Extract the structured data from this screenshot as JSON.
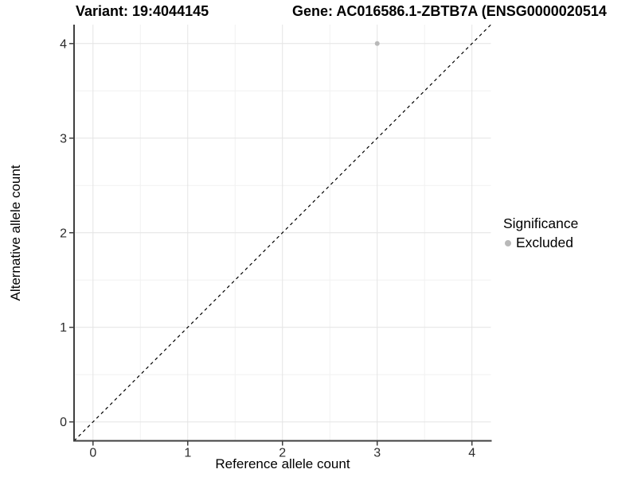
{
  "header": {
    "variant_title": "Variant: 19:4044145",
    "gene_title": "Gene: AC016586.1-ZBTB7A (ENSG0000020514"
  },
  "axes": {
    "xlabel": "Reference allele count",
    "ylabel": "Alternative allele count"
  },
  "legend": {
    "title": "Significance",
    "items": [
      {
        "label": "Excluded",
        "color": "#b9b9b9",
        "marker": "circle"
      }
    ]
  },
  "colors": {
    "background": "#ffffff",
    "grid_major": "#e4e4e4",
    "grid_minor": "#f1f1f1",
    "axis_line": "#3f3f3f",
    "tick_mark": "#3f3f3f",
    "tick_label": "#2b2b2b",
    "identity_line": "#000000",
    "point": "#b9b9b9"
  },
  "chart_data": {
    "type": "scatter",
    "title": "Variant: 19:4044145    Gene: AC016586.1-ZBTB7A (ENSG0000020514",
    "xlabel": "Reference allele count",
    "ylabel": "Alternative allele count",
    "xlim": [
      -0.2,
      4.2
    ],
    "ylim": [
      -0.2,
      4.2
    ],
    "x_ticks": [
      0,
      1,
      2,
      3,
      4
    ],
    "y_ticks": [
      0,
      1,
      2,
      3,
      4
    ],
    "x_minor_ticks": [
      0.5,
      1.5,
      2.5,
      3.5
    ],
    "y_minor_ticks": [
      0.5,
      1.5,
      2.5,
      3.5
    ],
    "grid": "major and minor, light gray on white",
    "legend_position": "right",
    "identity_line": {
      "style": "dashed",
      "x1": -0.2,
      "y1": -0.2,
      "x2": 4.2,
      "y2": 4.2
    },
    "series": [
      {
        "name": "Excluded",
        "color": "#b9b9b9",
        "points": [
          {
            "x": 3,
            "y": 4
          }
        ]
      }
    ]
  }
}
